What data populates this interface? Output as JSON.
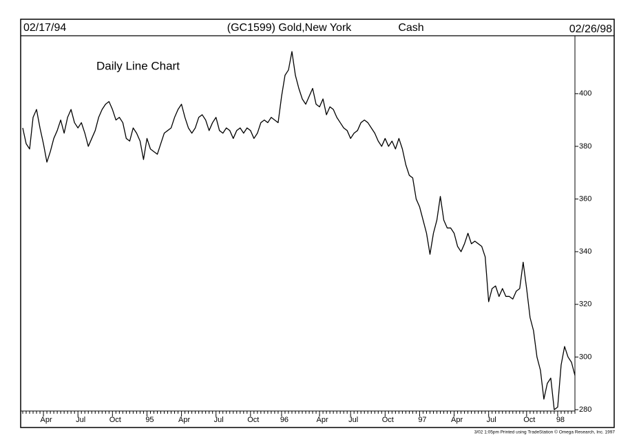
{
  "chart_data": {
    "type": "line",
    "title": "(GC1599) Gold,New York",
    "subtitle": "Cash",
    "start_date": "02/17/94",
    "end_date": "02/26/98",
    "annotation": "Daily Line Chart",
    "footer": "3/02 1:05pm Printed using TradeStation © Omega Research, Inc. 1997",
    "color": "#000000",
    "categories": [
      null,
      null,
      null,
      null,
      null,
      null,
      "Apr",
      null,
      null,
      null,
      null,
      null,
      null,
      null,
      null,
      null,
      "Jul",
      null,
      null,
      null,
      null,
      null,
      null,
      null,
      null,
      null,
      "Oct",
      null,
      null,
      null,
      null,
      null,
      null,
      null,
      null,
      null,
      "95",
      null,
      null,
      null,
      null,
      null,
      null,
      null,
      null,
      null,
      "Apr",
      null,
      null,
      null,
      null,
      null,
      null,
      null,
      null,
      null,
      "Jul",
      null,
      null,
      null,
      null,
      null,
      null,
      null,
      null,
      null,
      "Oct",
      null,
      null,
      null,
      null,
      null,
      null,
      null,
      null,
      "96",
      null,
      null,
      null,
      null,
      null,
      null,
      null,
      null,
      null,
      null,
      "Apr",
      null,
      null,
      null,
      null,
      null,
      null,
      null,
      null,
      "Jul",
      null,
      null,
      null,
      null,
      null,
      null,
      null,
      null,
      null,
      "Oct",
      null,
      null,
      null,
      null,
      null,
      null,
      null,
      null,
      null,
      "97",
      null,
      null,
      null,
      null,
      null,
      null,
      null,
      null,
      null,
      "Apr",
      null,
      null,
      null,
      null,
      null,
      null,
      null,
      null,
      null,
      "Jul",
      null,
      null,
      null,
      null,
      null,
      null,
      null,
      null,
      null,
      null,
      "Oct",
      null,
      null,
      null,
      null,
      null,
      null,
      null,
      null,
      "98",
      null,
      null,
      null,
      null,
      null
    ],
    "values": [
      387,
      381,
      379,
      391,
      394,
      387,
      381,
      374,
      378,
      383,
      386,
      390,
      385,
      391,
      394,
      389,
      387,
      389,
      385,
      380,
      383,
      386,
      391,
      394,
      396,
      397,
      394,
      390,
      391,
      389,
      383,
      382,
      387,
      385,
      382,
      375,
      383,
      379,
      378,
      377,
      381,
      385,
      386,
      387,
      391,
      394,
      396,
      391,
      387,
      385,
      387,
      391,
      392,
      390,
      386,
      389,
      391,
      386,
      385,
      387,
      386,
      383,
      386,
      387,
      385,
      387,
      386,
      383,
      385,
      389,
      390,
      389,
      391,
      390,
      389,
      399,
      407,
      409,
      416,
      407,
      402,
      398,
      396,
      399,
      402,
      396,
      395,
      398,
      392,
      395,
      394,
      391,
      389,
      387,
      386,
      383,
      385,
      386,
      389,
      390,
      389,
      387,
      385,
      382,
      380,
      383,
      380,
      382,
      379,
      383,
      379,
      373,
      369,
      368,
      360,
      357,
      352,
      347,
      339,
      347,
      352,
      361,
      352,
      349,
      349,
      347,
      342,
      340,
      343,
      347,
      343,
      344,
      343,
      342,
      338,
      321,
      326,
      327,
      323,
      326,
      323,
      323,
      322,
      325,
      326,
      336,
      326,
      315,
      310,
      300,
      295,
      284,
      290,
      292,
      280,
      281,
      297,
      304,
      300,
      298,
      293
    ],
    "ylim": [
      279.5,
      422
    ],
    "yticks": [
      280,
      300,
      320,
      340,
      360,
      380,
      400
    ]
  }
}
